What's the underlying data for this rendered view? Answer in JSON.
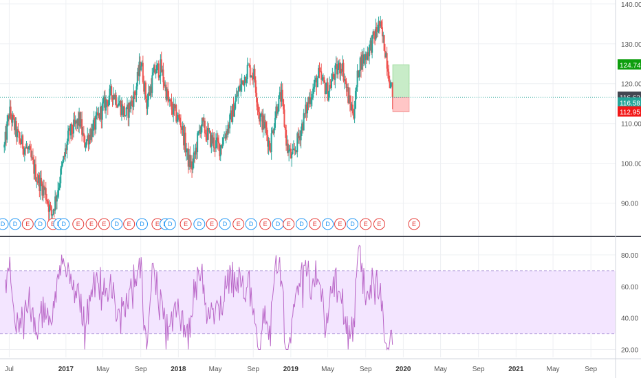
{
  "colors": {
    "up": "#26a69a",
    "down": "#ef5350",
    "rsi_line": "#ba68c8",
    "rsi_band": "#f3e5ff",
    "grid": "#eef0f3",
    "current_line": "#26a69a",
    "profit_zone": "#c8ecc8",
    "loss_zone": "#ffc6c6",
    "dividend": "#2196f3",
    "earnings": "#e53935"
  },
  "chart_data": [
    {
      "type": "candlestick",
      "ylim": [
        82,
        141
      ],
      "y_ticks": [
        "140.00",
        "130.00",
        "120.00",
        "110.00",
        "100.00",
        "90.00"
      ],
      "y_tick_values": [
        140,
        130,
        120,
        110,
        100,
        90
      ],
      "x_ticks": [
        "Jul",
        "2017",
        "May",
        "Sep",
        "2018",
        "May",
        "Sep",
        "2019",
        "May",
        "Sep",
        "2020",
        "May",
        "Sep",
        "2021",
        "May",
        "Sep"
      ],
      "x_tick_years": [
        "2017",
        "2018",
        "2019",
        "2020",
        "2021"
      ],
      "price_path": [
        {
          "t": "2016-06-15",
          "v": 104
        },
        {
          "t": "2016-07-01",
          "v": 113
        },
        {
          "t": "2016-08-01",
          "v": 106
        },
        {
          "t": "2016-09-01",
          "v": 103
        },
        {
          "t": "2016-10-01",
          "v": 96
        },
        {
          "t": "2016-10-25",
          "v": 93
        },
        {
          "t": "2016-11-15",
          "v": 87
        },
        {
          "t": "2016-12-01",
          "v": 92
        },
        {
          "t": "2017-01-10",
          "v": 107
        },
        {
          "t": "2017-02-15",
          "v": 111
        },
        {
          "t": "2017-03-01",
          "v": 105
        },
        {
          "t": "2017-04-01",
          "v": 109
        },
        {
          "t": "2017-05-01",
          "v": 114
        },
        {
          "t": "2017-06-01",
          "v": 118
        },
        {
          "t": "2017-07-15",
          "v": 112
        },
        {
          "t": "2017-08-15",
          "v": 118
        },
        {
          "t": "2017-09-01",
          "v": 126
        },
        {
          "t": "2017-09-20",
          "v": 115
        },
        {
          "t": "2017-10-15",
          "v": 123
        },
        {
          "t": "2017-11-05",
          "v": 124
        },
        {
          "t": "2017-12-01",
          "v": 115
        },
        {
          "t": "2018-01-10",
          "v": 110
        },
        {
          "t": "2018-02-01",
          "v": 101
        },
        {
          "t": "2018-02-15",
          "v": 99
        },
        {
          "t": "2018-03-15",
          "v": 110
        },
        {
          "t": "2018-04-15",
          "v": 106
        },
        {
          "t": "2018-05-15",
          "v": 104
        },
        {
          "t": "2018-06-15",
          "v": 110
        },
        {
          "t": "2018-07-15",
          "v": 118
        },
        {
          "t": "2018-08-15",
          "v": 124
        },
        {
          "t": "2018-09-05",
          "v": 122
        },
        {
          "t": "2018-09-20",
          "v": 112
        },
        {
          "t": "2018-10-10",
          "v": 109
        },
        {
          "t": "2018-10-25",
          "v": 104
        },
        {
          "t": "2018-11-15",
          "v": 114
        },
        {
          "t": "2018-12-01",
          "v": 117
        },
        {
          "t": "2018-12-20",
          "v": 104
        },
        {
          "t": "2019-01-05",
          "v": 101
        },
        {
          "t": "2019-02-01",
          "v": 108
        },
        {
          "t": "2019-03-01",
          "v": 116
        },
        {
          "t": "2019-04-01",
          "v": 122
        },
        {
          "t": "2019-05-01",
          "v": 118
        },
        {
          "t": "2019-05-20",
          "v": 122
        },
        {
          "t": "2019-06-15",
          "v": 125
        },
        {
          "t": "2019-07-10",
          "v": 115
        },
        {
          "t": "2019-07-25",
          "v": 113
        },
        {
          "t": "2019-08-10",
          "v": 125
        },
        {
          "t": "2019-09-01",
          "v": 127
        },
        {
          "t": "2019-09-25",
          "v": 131
        },
        {
          "t": "2019-10-15",
          "v": 135
        },
        {
          "t": "2019-11-05",
          "v": 128
        },
        {
          "t": "2019-11-20",
          "v": 120
        },
        {
          "t": "2019-11-28",
          "v": 116.6
        }
      ],
      "current_price": "116.62",
      "price_badges": [
        {
          "label": "124.74",
          "value": 124.74,
          "color": "#0d9e0d"
        },
        {
          "label": "116.62",
          "value": 116.62,
          "color": "#434651"
        },
        {
          "label": "116.58",
          "value": 115.2,
          "color": "#26a69a"
        },
        {
          "label": "112.95",
          "value": 112.95,
          "color": "#f21818"
        }
      ],
      "position": {
        "entry": 116.58,
        "target": 124.74,
        "stop": 112.95,
        "start": "2019-11-28",
        "end": "2020-01-20"
      },
      "events": [
        {
          "t": "2016-06-10",
          "kind": "D"
        },
        {
          "t": "2016-07-20",
          "kind": "D"
        },
        {
          "t": "2016-08-30",
          "kind": "E"
        },
        {
          "t": "2016-10-10",
          "kind": "D"
        },
        {
          "t": "2016-11-20",
          "kind": "E"
        },
        {
          "t": "2016-12-10",
          "kind": "D"
        },
        {
          "t": "2016-12-25",
          "kind": "D"
        },
        {
          "t": "2017-02-10",
          "kind": "E"
        },
        {
          "t": "2017-03-25",
          "kind": "E"
        },
        {
          "t": "2017-05-05",
          "kind": "E"
        },
        {
          "t": "2017-06-15",
          "kind": "D"
        },
        {
          "t": "2017-07-25",
          "kind": "E"
        },
        {
          "t": "2017-09-05",
          "kind": "D"
        },
        {
          "t": "2017-10-25",
          "kind": "E"
        },
        {
          "t": "2017-11-20",
          "kind": "D"
        },
        {
          "t": "2017-12-05",
          "kind": "D"
        },
        {
          "t": "2018-01-25",
          "kind": "E"
        },
        {
          "t": "2018-03-10",
          "kind": "D"
        },
        {
          "t": "2018-04-20",
          "kind": "E"
        },
        {
          "t": "2018-06-01",
          "kind": "D"
        },
        {
          "t": "2018-07-15",
          "kind": "E"
        },
        {
          "t": "2018-08-25",
          "kind": "D"
        },
        {
          "t": "2018-10-10",
          "kind": "E"
        },
        {
          "t": "2018-11-20",
          "kind": "D"
        },
        {
          "t": "2018-12-25",
          "kind": "E"
        },
        {
          "t": "2019-02-05",
          "kind": "D"
        },
        {
          "t": "2019-03-20",
          "kind": "E"
        },
        {
          "t": "2019-05-01",
          "kind": "D"
        },
        {
          "t": "2019-06-10",
          "kind": "E"
        },
        {
          "t": "2019-07-20",
          "kind": "D"
        },
        {
          "t": "2019-09-01",
          "kind": "E"
        },
        {
          "t": "2019-10-15",
          "kind": "E"
        },
        {
          "t": "2020-02-05",
          "kind": "E"
        }
      ]
    },
    {
      "type": "line",
      "ylim": [
        15,
        90
      ],
      "y_ticks": [
        "80.00",
        "60.00",
        "40.00",
        "20.00"
      ],
      "y_tick_values": [
        80,
        60,
        40,
        20
      ],
      "band": [
        30,
        70
      ],
      "last_value": 23
    }
  ],
  "layout_time": {
    "start": "2016-06-01",
    "end": "2021-11-20"
  }
}
